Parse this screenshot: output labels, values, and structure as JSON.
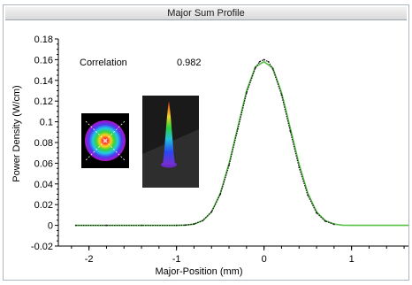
{
  "window": {
    "title": "Major Sum Profile"
  },
  "chart_data": {
    "type": "line",
    "title": "Major Sum Profile",
    "xlabel": "Major-Position (mm)",
    "ylabel": "Power Density (W/cm)",
    "xlim": [
      -2.35,
      1.65
    ],
    "ylim": [
      -0.02,
      0.18
    ],
    "x_ticks": [
      "-2",
      "-1",
      "0",
      "1"
    ],
    "y_ticks": [
      "-0.02",
      "0",
      "0.02",
      "0.04",
      "0.06",
      "0.08",
      "0.1",
      "0.12",
      "0.14",
      "0.16",
      "0.18"
    ],
    "annotations": [
      {
        "label": "Correlation",
        "value": "0.982"
      }
    ],
    "series": [
      {
        "style": "dotted-measured",
        "color": "#1a1a1a",
        "x": [
          -2.15,
          -1.8,
          -1.4,
          -1.0,
          -0.9,
          -0.8,
          -0.7,
          -0.6,
          -0.5,
          -0.4,
          -0.3,
          -0.2,
          -0.1,
          -0.05,
          0.0,
          0.05,
          0.1,
          0.2,
          0.3,
          0.4,
          0.5,
          0.6,
          0.7,
          0.8
        ],
        "y": [
          0.0,
          0.0,
          0.0,
          0.0,
          0.0003,
          0.0013,
          0.0046,
          0.013,
          0.03,
          0.058,
          0.093,
          0.128,
          0.152,
          0.158,
          0.16,
          0.158,
          0.151,
          0.126,
          0.091,
          0.056,
          0.029,
          0.012,
          0.004,
          0.001
        ]
      },
      {
        "style": "fit",
        "color": "#55c044",
        "x": [
          -2.15,
          -1.4,
          -1.0,
          -0.9,
          -0.8,
          -0.7,
          -0.6,
          -0.5,
          -0.4,
          -0.3,
          -0.2,
          -0.1,
          0.0,
          0.1,
          0.2,
          0.3,
          0.4,
          0.5,
          0.6,
          0.7,
          0.8,
          0.9,
          1.0,
          1.3,
          1.65
        ],
        "y": [
          0.0,
          0.0,
          0.0,
          0.0002,
          0.0012,
          0.0045,
          0.013,
          0.031,
          0.06,
          0.095,
          0.13,
          0.153,
          0.158,
          0.152,
          0.128,
          0.094,
          0.059,
          0.031,
          0.013,
          0.0045,
          0.0012,
          0.0002,
          0.0,
          0.0,
          0.0
        ]
      }
    ]
  },
  "thumbnails": [
    {
      "icon": "beam-2d-heatmap-icon"
    },
    {
      "icon": "beam-3d-profile-icon"
    }
  ]
}
